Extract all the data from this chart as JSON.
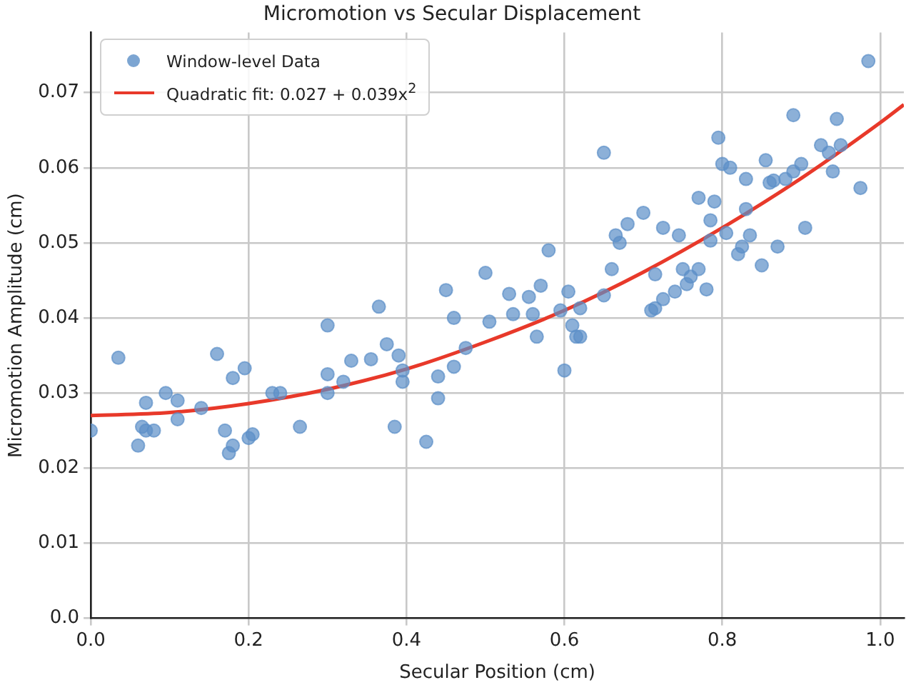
{
  "chart_data": {
    "type": "scatter",
    "title": "Micromotion vs Secular Displacement",
    "xlabel": "Secular Position (cm)",
    "ylabel": "Micromotion Amplitude (cm)",
    "xlim": [
      0,
      1.03
    ],
    "xticks": [
      {
        "value": 0,
        "label": "0.0"
      },
      {
        "value": 0.2,
        "label": "0.2"
      },
      {
        "value": 0.4,
        "label": "0.4"
      },
      {
        "value": 0.6,
        "label": "0.6"
      },
      {
        "value": 0.8,
        "label": "0.8"
      },
      {
        "value": 1,
        "label": "1.0"
      }
    ],
    "ylim": [
      0,
      0.078
    ],
    "yticks": [
      {
        "value": 0,
        "label": "0.0"
      },
      0.01,
      0.02,
      0.03,
      0.04,
      0.05,
      0.06,
      0.07
    ],
    "grid": true,
    "legend": "top left",
    "marker": "circle",
    "series": [
      {
        "name": "Window-level Data",
        "color": "#5b8fc7",
        "x": [
          0.0,
          0.035,
          0.06,
          0.065,
          0.07,
          0.07,
          0.08,
          0.095,
          0.11,
          0.11,
          0.14,
          0.16,
          0.17,
          0.175,
          0.18,
          0.18,
          0.195,
          0.2,
          0.205,
          0.23,
          0.24,
          0.265,
          0.3,
          0.3,
          0.3,
          0.32,
          0.33,
          0.355,
          0.365,
          0.375,
          0.385,
          0.39,
          0.395,
          0.395,
          0.425,
          0.44,
          0.44,
          0.45,
          0.46,
          0.46,
          0.475,
          0.5,
          0.505,
          0.53,
          0.535,
          0.555,
          0.56,
          0.565,
          0.57,
          0.58,
          0.595,
          0.6,
          0.605,
          0.61,
          0.615,
          0.62,
          0.62,
          0.65,
          0.65,
          0.66,
          0.665,
          0.67,
          0.68,
          0.7,
          0.71,
          0.715,
          0.715,
          0.725,
          0.725,
          0.74,
          0.745,
          0.75,
          0.755,
          0.76,
          0.77,
          0.77,
          0.78,
          0.785,
          0.785,
          0.79,
          0.795,
          0.8,
          0.805,
          0.81,
          0.82,
          0.825,
          0.83,
          0.83,
          0.835,
          0.85,
          0.855,
          0.86,
          0.865,
          0.87,
          0.88,
          0.89,
          0.89,
          0.9,
          0.905,
          0.925,
          0.935,
          0.94,
          0.945,
          0.95,
          0.975,
          0.985
        ],
        "values": [
          0.025,
          0.0347,
          0.023,
          0.0255,
          0.025,
          0.0287,
          0.025,
          0.03,
          0.0265,
          0.029,
          0.028,
          0.0352,
          0.025,
          0.022,
          0.023,
          0.032,
          0.0333,
          0.024,
          0.0245,
          0.03,
          0.03,
          0.0255,
          0.039,
          0.0325,
          0.03,
          0.0315,
          0.0343,
          0.0345,
          0.0415,
          0.0365,
          0.0255,
          0.035,
          0.0315,
          0.033,
          0.0235,
          0.0293,
          0.0322,
          0.0437,
          0.04,
          0.0335,
          0.036,
          0.046,
          0.0395,
          0.0432,
          0.0405,
          0.0428,
          0.0405,
          0.0375,
          0.0443,
          0.049,
          0.041,
          0.033,
          0.0435,
          0.039,
          0.0375,
          0.0375,
          0.0413,
          0.062,
          0.043,
          0.0465,
          0.051,
          0.05,
          0.0525,
          0.054,
          0.041,
          0.0413,
          0.0458,
          0.0425,
          0.052,
          0.0435,
          0.051,
          0.0465,
          0.0445,
          0.0455,
          0.0465,
          0.056,
          0.0438,
          0.0503,
          0.053,
          0.0555,
          0.064,
          0.0605,
          0.0513,
          0.06,
          0.0485,
          0.0495,
          0.0545,
          0.0585,
          0.051,
          0.047,
          0.061,
          0.058,
          0.0583,
          0.0495,
          0.0585,
          0.0595,
          0.067,
          0.0605,
          0.052,
          0.063,
          0.062,
          0.0595,
          0.0665,
          0.063,
          0.0573,
          0.0742
        ]
      },
      {
        "name": "Quadratic fit: 0.027 + 0.039x$^{2}$",
        "type": "line",
        "color": "#e8392a",
        "marker": "none",
        "line_style": "solid",
        "x": [
          0,
          0.1,
          0.2,
          0.3,
          0.4,
          0.5,
          0.6,
          0.7,
          0.8,
          0.9,
          1.0,
          1.03
        ],
        "values": [
          0.027,
          0.0274,
          0.0286,
          0.0305,
          0.0332,
          0.0368,
          0.041,
          0.0461,
          0.052,
          0.0586,
          0.066,
          0.0684
        ]
      }
    ]
  }
}
